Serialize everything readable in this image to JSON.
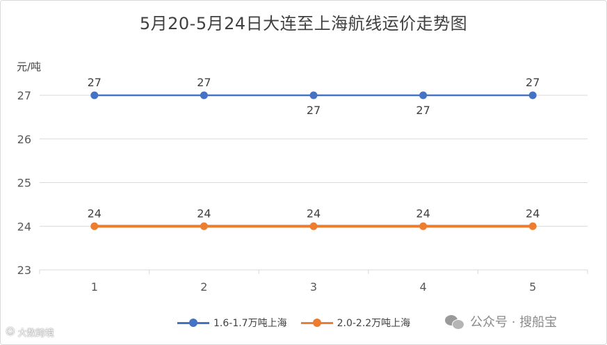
{
  "chart_data": {
    "type": "line",
    "title": "5月20-5月24日大连至上海航线运价走势图",
    "ylabel": "元/吨",
    "xlabel": "",
    "categories": [
      "1",
      "2",
      "3",
      "4",
      "5"
    ],
    "ylim": [
      23,
      27
    ],
    "yticks": [
      "23",
      "24",
      "25",
      "26",
      "27"
    ],
    "grid": "horizontal",
    "legend_position": "bottom",
    "series": [
      {
        "name": "1.6-1.7万吨上海",
        "values": [
          27,
          27,
          27,
          27,
          27
        ],
        "color": "#4472c4",
        "labels": [
          "27",
          "27",
          "27",
          "27",
          "27"
        ],
        "label_side": [
          "above",
          "above",
          "below",
          "below",
          "above"
        ]
      },
      {
        "name": "2.0-2.2万吨上海",
        "values": [
          24,
          24,
          24,
          24,
          24
        ],
        "color": "#ed7d31",
        "labels": [
          "24",
          "24",
          "24",
          "24",
          "24"
        ],
        "label_side": [
          "above",
          "above",
          "above",
          "above",
          "above"
        ]
      }
    ]
  },
  "watermarks": {
    "left": "大数跨境",
    "left_icon": "smiley-logo-icon",
    "right": "公众号 · 搜船宝",
    "right_icon": "wechat-icon"
  }
}
